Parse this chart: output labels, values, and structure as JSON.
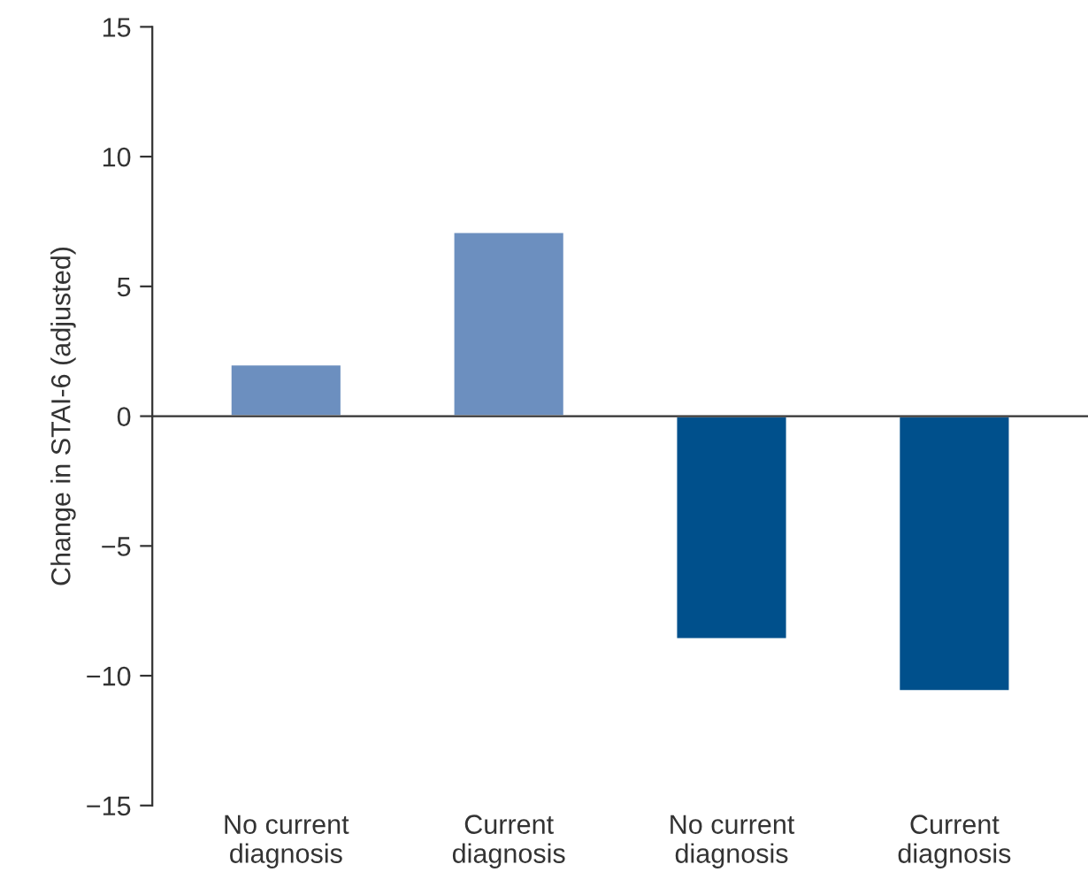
{
  "chart_data": {
    "type": "bar",
    "ylabel": "Change in STAI-6 (adjusted)",
    "categories": [
      "No current\ndiagnosis",
      "Current\ndiagnosis",
      "No current\ndiagnosis",
      "Current\ndiagnosis"
    ],
    "values": [
      2.0,
      7.1,
      -8.6,
      -10.6
    ],
    "colors": [
      "#6c8fbf",
      "#6c8fbf",
      "#00508c",
      "#00508c"
    ],
    "ylim": [
      -15,
      15
    ],
    "yticks": [
      {
        "value": -15,
        "label": "−15"
      },
      {
        "value": -10,
        "label": "−10"
      },
      {
        "value": -5,
        "label": "−5"
      },
      0,
      5,
      10,
      15
    ],
    "legend": false
  }
}
